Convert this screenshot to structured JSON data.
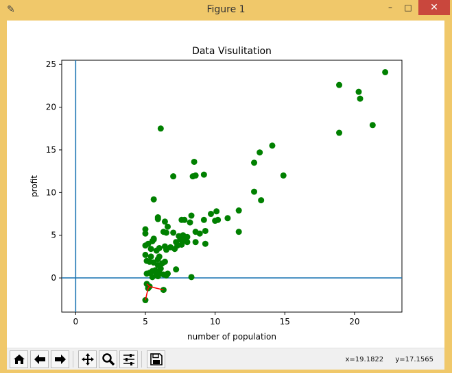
{
  "window": {
    "title": "Figure 1",
    "controls": {
      "minimize": "–",
      "maximize": "□",
      "close": "✕"
    }
  },
  "toolbar": {
    "buttons": [
      "home-icon",
      "back-icon",
      "forward-icon",
      "pan-icon",
      "zoom-icon",
      "configure-subplots-icon",
      "save-icon"
    ],
    "coord_x": "x=19.1822",
    "coord_y": "y=17.1565"
  },
  "chart_data": {
    "type": "scatter",
    "title": "Data Visulitation",
    "xlabel": "number of population",
    "ylabel": "profit",
    "xlim": [
      -1,
      23.4
    ],
    "ylim": [
      -4,
      25.5
    ],
    "xticks": [
      0,
      5,
      10,
      15,
      20
    ],
    "yticks": [
      0,
      5,
      10,
      15,
      20,
      25
    ],
    "grid": false,
    "point_color": "#008000",
    "axis_line_color": "#1f77b4",
    "axis_lines": {
      "x": 0,
      "y": 0
    },
    "points": [
      [
        22.2,
        24.1
      ],
      [
        18.9,
        22.6
      ],
      [
        20.3,
        21.8
      ],
      [
        20.4,
        21.0
      ],
      [
        21.3,
        17.9
      ],
      [
        18.9,
        17.0
      ],
      [
        6.1,
        17.5
      ],
      [
        14.1,
        15.5
      ],
      [
        13.2,
        14.7
      ],
      [
        12.8,
        13.5
      ],
      [
        8.5,
        13.6
      ],
      [
        8.4,
        11.9
      ],
      [
        8.6,
        12.0
      ],
      [
        9.2,
        12.1
      ],
      [
        7.0,
        11.9
      ],
      [
        14.9,
        12.0
      ],
      [
        12.8,
        10.1
      ],
      [
        13.3,
        9.1
      ],
      [
        5.6,
        9.2
      ],
      [
        11.7,
        7.9
      ],
      [
        10.1,
        7.8
      ],
      [
        10.2,
        6.8
      ],
      [
        10.9,
        7.0
      ],
      [
        9.7,
        7.5
      ],
      [
        8.3,
        7.3
      ],
      [
        5.9,
        7.1
      ],
      [
        5.9,
        6.9
      ],
      [
        7.6,
        6.8
      ],
      [
        7.8,
        6.8
      ],
      [
        8.2,
        6.5
      ],
      [
        9.2,
        6.8
      ],
      [
        10.0,
        6.7
      ],
      [
        6.4,
        6.6
      ],
      [
        6.6,
        6.0
      ],
      [
        6.3,
        5.4
      ],
      [
        6.5,
        5.3
      ],
      [
        7.0,
        5.3
      ],
      [
        7.4,
        4.9
      ],
      [
        7.7,
        5.0
      ],
      [
        8.0,
        4.8
      ],
      [
        8.6,
        5.4
      ],
      [
        8.9,
        5.2
      ],
      [
        9.3,
        5.5
      ],
      [
        9.3,
        4.0
      ],
      [
        11.7,
        5.4
      ],
      [
        5.0,
        5.7
      ],
      [
        5.0,
        5.2
      ],
      [
        5.6,
        4.6
      ],
      [
        5.6,
        4.5
      ],
      [
        5.5,
        4.3
      ],
      [
        5.2,
        4.0
      ],
      [
        5.0,
        3.8
      ],
      [
        5.4,
        3.4
      ],
      [
        5.8,
        3.2
      ],
      [
        6.0,
        3.5
      ],
      [
        6.4,
        3.7
      ],
      [
        6.5,
        3.3
      ],
      [
        6.8,
        3.6
      ],
      [
        7.1,
        3.4
      ],
      [
        7.3,
        3.8
      ],
      [
        7.6,
        3.9
      ],
      [
        8.0,
        4.2
      ],
      [
        8.6,
        4.2
      ],
      [
        7.2,
        4.2
      ],
      [
        7.5,
        4.5
      ],
      [
        7.8,
        4.4
      ],
      [
        5.0,
        2.7
      ],
      [
        5.4,
        2.5
      ],
      [
        5.9,
        2.2
      ],
      [
        6.0,
        2.5
      ],
      [
        5.1,
        2.0
      ],
      [
        5.3,
        1.9
      ],
      [
        5.6,
        1.8
      ],
      [
        5.9,
        1.5
      ],
      [
        6.2,
        1.7
      ],
      [
        6.4,
        1.9
      ],
      [
        5.1,
        0.5
      ],
      [
        5.3,
        0.6
      ],
      [
        5.5,
        0.8
      ],
      [
        5.7,
        0.9
      ],
      [
        5.8,
        0.4
      ],
      [
        6.0,
        0.7
      ],
      [
        6.3,
        0.4
      ],
      [
        6.5,
        0.3
      ],
      [
        5.5,
        0.1
      ],
      [
        5.9,
        0.2
      ],
      [
        6.1,
        1.1
      ],
      [
        6.6,
        0.5
      ],
      [
        7.2,
        1.0
      ],
      [
        8.3,
        0.1
      ],
      [
        5.1,
        -0.7
      ],
      [
        5.3,
        -1.0
      ],
      [
        5.2,
        -1.2
      ],
      [
        6.3,
        -1.4
      ],
      [
        5.0,
        -2.6
      ]
    ],
    "red_line_points": [
      [
        5.0,
        -2.6
      ],
      [
        5.2,
        -1.2
      ],
      [
        5.3,
        -1.0
      ],
      [
        6.3,
        -1.4
      ],
      [
        5.3,
        -1.0
      ],
      [
        5.1,
        -0.7
      ]
    ],
    "red_line_color": "#ff0000"
  }
}
